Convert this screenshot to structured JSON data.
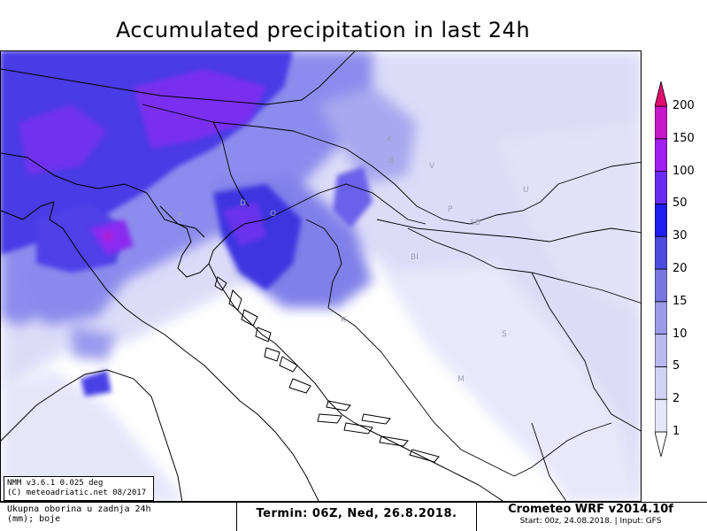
{
  "title": "Accumulated precipitation in last 24h",
  "model_box": {
    "line1": "NMM v3.6.1 0.025 deg",
    "line2": "(C) meteoadriatic.net 08/2017"
  },
  "footer": {
    "description_line1": "Ukupna oborina u zadnja 24h",
    "description_line2": "(mm); boje",
    "termin": "Termin: 06Z, Ned, 26.8.2018.",
    "model": "Crometeo WRF v2014.10f",
    "start_info": "Start: 00z, 24.08.2018. | Input: GFS"
  },
  "legend": {
    "unit": "mm",
    "levels": [
      "1",
      "2",
      "5",
      "10",
      "15",
      "20",
      "30",
      "50",
      "100",
      "150",
      "200"
    ],
    "colors": [
      "#ffffff",
      "#e6e6fa",
      "#d2d2f5",
      "#b9b9f0",
      "#9b9be8",
      "#7878e0",
      "#4c4ce0",
      "#1e1eef",
      "#6a2cf0",
      "#a020f0",
      "#c818c8",
      "#e0106e"
    ]
  },
  "map_labels": [
    "I",
    "P",
    "D",
    "O",
    "K",
    "B",
    "V",
    "P",
    "SB",
    "BI",
    "S",
    "M",
    "K",
    "U"
  ]
}
